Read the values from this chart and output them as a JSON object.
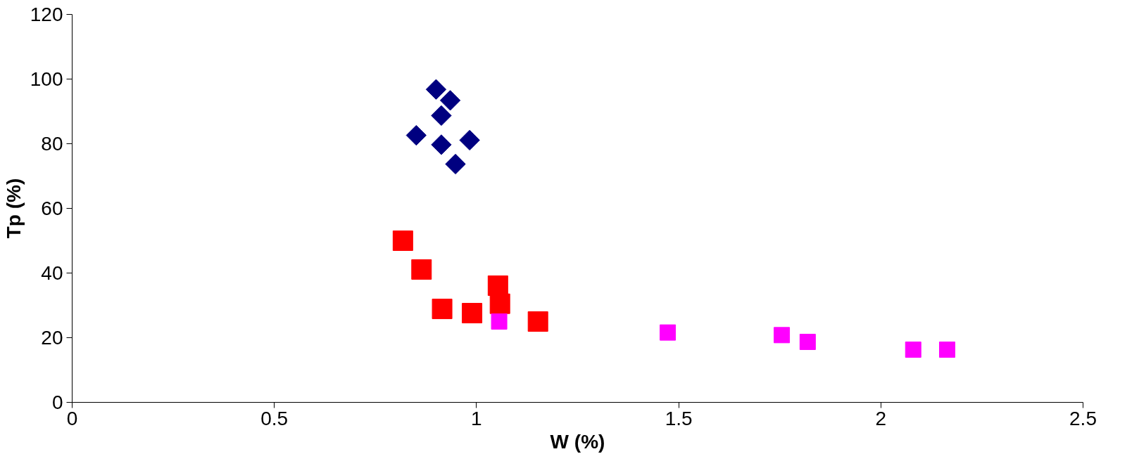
{
  "chart_data": {
    "type": "scatter",
    "xlabel": "W (%)",
    "ylabel": "Tp (%)",
    "xlim": [
      0,
      2.5
    ],
    "xticks": [
      0,
      0.5,
      1,
      1.5,
      2,
      2.5
    ],
    "ylim": [
      0,
      120
    ],
    "yticks": [
      0,
      20,
      40,
      60,
      80,
      100,
      120
    ],
    "grid": false,
    "series": [
      {
        "color": "#000080",
        "marker": "diamond",
        "x": [
          0.9,
          0.935,
          0.913,
          0.851,
          0.983,
          0.913,
          0.948
        ],
        "values": [
          96.8,
          93.4,
          88.7,
          82.6,
          81.1,
          79.7,
          73.7
        ]
      },
      {
        "color": "#ff0000",
        "marker": "square",
        "x": [
          0.818,
          0.864,
          0.915,
          0.989,
          1.053,
          1.058,
          1.152
        ],
        "values": [
          50.0,
          41.1,
          28.9,
          27.6,
          36.1,
          30.5,
          25.0
        ]
      },
      {
        "color": "#ff00ff",
        "marker": "square",
        "x": [
          1.056,
          1.473,
          1.755,
          1.819,
          2.08,
          2.164
        ],
        "values": [
          25.0,
          21.6,
          20.8,
          18.7,
          16.3,
          16.3
        ]
      }
    ]
  }
}
